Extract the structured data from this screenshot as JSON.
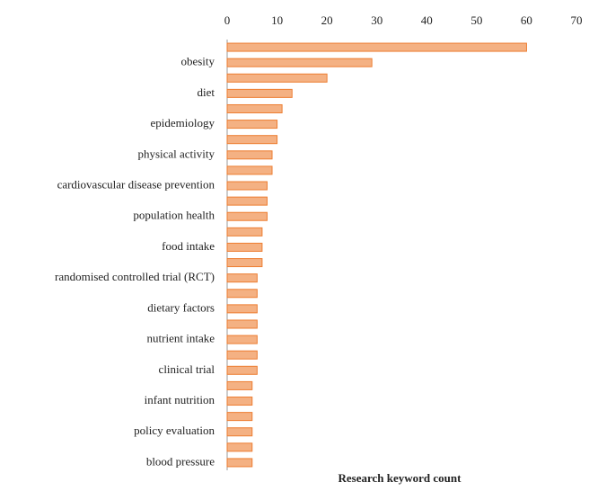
{
  "chart_data": {
    "type": "bar",
    "orientation": "horizontal",
    "x_label": "Research keyword count",
    "categories": [
      null,
      "obesity",
      null,
      "diet",
      null,
      "epidemiology",
      null,
      "physical activity",
      null,
      "cardiovascular disease prevention",
      null,
      "population health",
      null,
      "food intake",
      null,
      "randomised controlled trial (RCT)",
      null,
      "dietary factors",
      null,
      "nutrient intake",
      null,
      "clinical trial",
      null,
      "infant nutrition",
      null,
      "policy evaluation",
      null,
      "blood pressure"
    ],
    "values": [
      60,
      29,
      20,
      13,
      11,
      10,
      10,
      9,
      9,
      8,
      8,
      8,
      7,
      7,
      7,
      6,
      6,
      6,
      6,
      6,
      6,
      6,
      5,
      5,
      5,
      5,
      5,
      5
    ],
    "color": "#f4b183",
    "edge_color": "#ed7d31",
    "xlim": [
      0,
      70
    ],
    "xticks": [
      0,
      10,
      20,
      30,
      40,
      50,
      60,
      70
    ],
    "grid": false
  }
}
